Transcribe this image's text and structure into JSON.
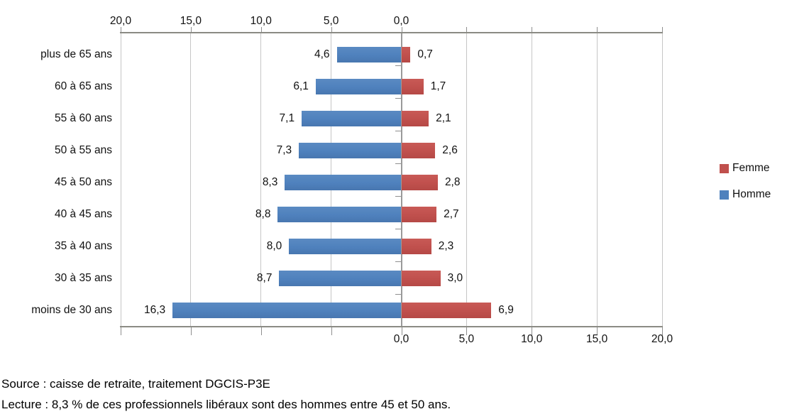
{
  "chart_data": {
    "type": "bar",
    "variant": "horizontal-pyramid",
    "categories": [
      "plus de 65 ans",
      "60 à 65 ans",
      "55 à 60 ans",
      "50 à 55 ans",
      "45 à 50 ans",
      "40 à 45 ans",
      "35 à 40 ans",
      "30 à 35 ans",
      "moins de 30 ans"
    ],
    "series": [
      {
        "name": "Homme",
        "side": "left",
        "color": "#4F81BD",
        "values": [
          4.6,
          6.1,
          7.1,
          7.3,
          8.3,
          8.8,
          8.0,
          8.7,
          16.3
        ],
        "labels": [
          "4,6",
          "6,1",
          "7,1",
          "7,3",
          "8,3",
          "8,8",
          "8,0",
          "8,7",
          "16,3"
        ]
      },
      {
        "name": "Femme",
        "side": "right",
        "color": "#C0504D",
        "values": [
          0.7,
          1.7,
          2.1,
          2.6,
          2.8,
          2.7,
          2.3,
          3.0,
          6.9
        ],
        "labels": [
          "0,7",
          "1,7",
          "2,1",
          "2,6",
          "2,8",
          "2,7",
          "2,3",
          "3,0",
          "6,9"
        ]
      }
    ],
    "top_axis": {
      "tick_labels": [
        "20,0",
        "15,0",
        "10,0",
        "5,0",
        "0,0"
      ],
      "min": 0,
      "max": 20,
      "direction": "reversed"
    },
    "bottom_axis": {
      "tick_labels": [
        "0,0",
        "5,0",
        "10,0",
        "15,0",
        "20,0"
      ],
      "min": 0,
      "max": 20
    },
    "grid": true,
    "legend": {
      "position": "right",
      "items": [
        {
          "label": "Femme",
          "color": "#C0504D"
        },
        {
          "label": "Homme",
          "color": "#4F81BD"
        }
      ]
    },
    "title": "",
    "unit": "%"
  },
  "notes": {
    "source": "Source : caisse de retraite, traitement DGCIS-P3E",
    "lecture": "Lecture : 8,3 % de ces professionnels libéraux sont des hommes entre 45 et 50 ans."
  }
}
